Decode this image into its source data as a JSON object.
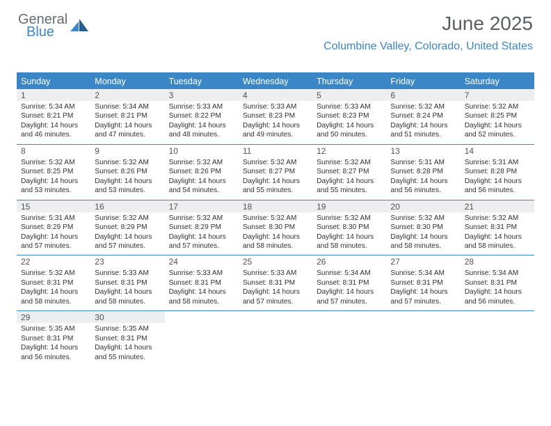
{
  "logo": {
    "word1": "General",
    "word2": "Blue"
  },
  "title": "June 2025",
  "location": "Columbine Valley, Colorado, United States",
  "colors": {
    "accent": "#3b86c6",
    "header_text": "#5a5e62",
    "shaded_bg": "#eceeef",
    "body_text": "#2f2f2f"
  },
  "day_names": [
    "Sunday",
    "Monday",
    "Tuesday",
    "Wednesday",
    "Thursday",
    "Friday",
    "Saturday"
  ],
  "weeks": [
    [
      {
        "n": 1,
        "shaded": true,
        "rise": "5:34 AM",
        "set": "8:21 PM",
        "dl": "14 hours and 46 minutes."
      },
      {
        "n": 2,
        "shaded": true,
        "rise": "5:34 AM",
        "set": "8:21 PM",
        "dl": "14 hours and 47 minutes."
      },
      {
        "n": 3,
        "shaded": true,
        "rise": "5:33 AM",
        "set": "8:22 PM",
        "dl": "14 hours and 48 minutes."
      },
      {
        "n": 4,
        "shaded": true,
        "rise": "5:33 AM",
        "set": "8:23 PM",
        "dl": "14 hours and 49 minutes."
      },
      {
        "n": 5,
        "shaded": true,
        "rise": "5:33 AM",
        "set": "8:23 PM",
        "dl": "14 hours and 50 minutes."
      },
      {
        "n": 6,
        "shaded": true,
        "rise": "5:32 AM",
        "set": "8:24 PM",
        "dl": "14 hours and 51 minutes."
      },
      {
        "n": 7,
        "shaded": true,
        "rise": "5:32 AM",
        "set": "8:25 PM",
        "dl": "14 hours and 52 minutes."
      }
    ],
    [
      {
        "n": 8,
        "shaded": false,
        "rise": "5:32 AM",
        "set": "8:25 PM",
        "dl": "14 hours and 53 minutes."
      },
      {
        "n": 9,
        "shaded": false,
        "rise": "5:32 AM",
        "set": "8:26 PM",
        "dl": "14 hours and 53 minutes."
      },
      {
        "n": 10,
        "shaded": false,
        "rise": "5:32 AM",
        "set": "8:26 PM",
        "dl": "14 hours and 54 minutes."
      },
      {
        "n": 11,
        "shaded": false,
        "rise": "5:32 AM",
        "set": "8:27 PM",
        "dl": "14 hours and 55 minutes."
      },
      {
        "n": 12,
        "shaded": false,
        "rise": "5:32 AM",
        "set": "8:27 PM",
        "dl": "14 hours and 55 minutes."
      },
      {
        "n": 13,
        "shaded": false,
        "rise": "5:31 AM",
        "set": "8:28 PM",
        "dl": "14 hours and 56 minutes."
      },
      {
        "n": 14,
        "shaded": false,
        "rise": "5:31 AM",
        "set": "8:28 PM",
        "dl": "14 hours and 56 minutes."
      }
    ],
    [
      {
        "n": 15,
        "shaded": true,
        "rise": "5:31 AM",
        "set": "8:29 PM",
        "dl": "14 hours and 57 minutes."
      },
      {
        "n": 16,
        "shaded": true,
        "rise": "5:32 AM",
        "set": "8:29 PM",
        "dl": "14 hours and 57 minutes."
      },
      {
        "n": 17,
        "shaded": true,
        "rise": "5:32 AM",
        "set": "8:29 PM",
        "dl": "14 hours and 57 minutes."
      },
      {
        "n": 18,
        "shaded": true,
        "rise": "5:32 AM",
        "set": "8:30 PM",
        "dl": "14 hours and 58 minutes."
      },
      {
        "n": 19,
        "shaded": true,
        "rise": "5:32 AM",
        "set": "8:30 PM",
        "dl": "14 hours and 58 minutes."
      },
      {
        "n": 20,
        "shaded": true,
        "rise": "5:32 AM",
        "set": "8:30 PM",
        "dl": "14 hours and 58 minutes."
      },
      {
        "n": 21,
        "shaded": true,
        "rise": "5:32 AM",
        "set": "8:31 PM",
        "dl": "14 hours and 58 minutes."
      }
    ],
    [
      {
        "n": 22,
        "shaded": false,
        "rise": "5:32 AM",
        "set": "8:31 PM",
        "dl": "14 hours and 58 minutes."
      },
      {
        "n": 23,
        "shaded": false,
        "rise": "5:33 AM",
        "set": "8:31 PM",
        "dl": "14 hours and 58 minutes."
      },
      {
        "n": 24,
        "shaded": false,
        "rise": "5:33 AM",
        "set": "8:31 PM",
        "dl": "14 hours and 58 minutes."
      },
      {
        "n": 25,
        "shaded": false,
        "rise": "5:33 AM",
        "set": "8:31 PM",
        "dl": "14 hours and 57 minutes."
      },
      {
        "n": 26,
        "shaded": false,
        "rise": "5:34 AM",
        "set": "8:31 PM",
        "dl": "14 hours and 57 minutes."
      },
      {
        "n": 27,
        "shaded": false,
        "rise": "5:34 AM",
        "set": "8:31 PM",
        "dl": "14 hours and 57 minutes."
      },
      {
        "n": 28,
        "shaded": false,
        "rise": "5:34 AM",
        "set": "8:31 PM",
        "dl": "14 hours and 56 minutes."
      }
    ],
    [
      {
        "n": 29,
        "shaded": true,
        "rise": "5:35 AM",
        "set": "8:31 PM",
        "dl": "14 hours and 56 minutes."
      },
      {
        "n": 30,
        "shaded": true,
        "rise": "5:35 AM",
        "set": "8:31 PM",
        "dl": "14 hours and 55 minutes."
      },
      null,
      null,
      null,
      null,
      null
    ]
  ],
  "labels": {
    "sunrise": "Sunrise:",
    "sunset": "Sunset:",
    "daylight": "Daylight:"
  }
}
